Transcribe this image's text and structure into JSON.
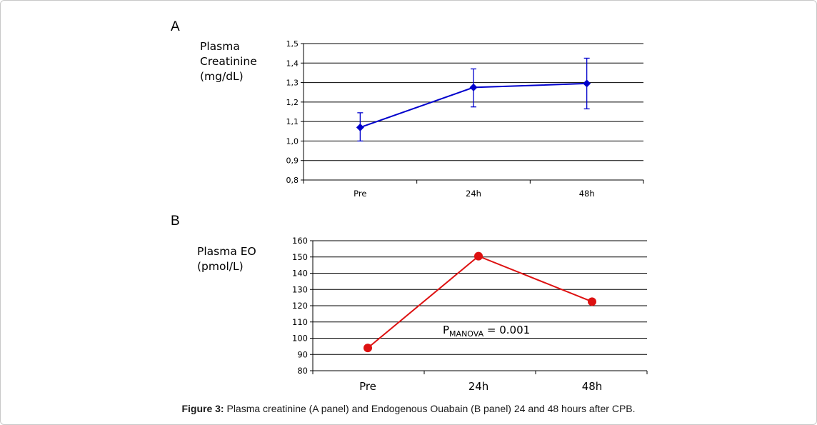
{
  "caption": {
    "label": "Figure 3:",
    "text": "Plasma creatinine (A panel) and Endogenous Ouabain (B panel) 24 and 48 hours after CPB."
  },
  "chart_data": [
    {
      "panel": "A",
      "type": "line",
      "ylabel_lines": [
        "Plasma",
        "Creatinine",
        "(mg/dL)"
      ],
      "categories": [
        "Pre",
        "24h",
        "48h"
      ],
      "ylim": [
        0.8,
        1.5
      ],
      "yticks": [
        0.8,
        0.9,
        1.0,
        1.1,
        1.2,
        1.3,
        1.4,
        1.5
      ],
      "ytick_labels": [
        "0,8",
        "0,9",
        "1,0",
        "1,1",
        "1,2",
        "1,3",
        "1,4",
        "1,5"
      ],
      "grid": true,
      "marker": "diamond",
      "color": "#0000cc",
      "series": [
        {
          "values": [
            1.07,
            1.275,
            1.295
          ],
          "err_low": [
            1.0,
            1.175,
            1.165
          ],
          "err_high": [
            1.145,
            1.37,
            1.425
          ]
        }
      ]
    },
    {
      "panel": "B",
      "type": "line",
      "ylabel_lines": [
        "Plasma EO",
        "(pmol/L)"
      ],
      "categories": [
        "Pre",
        "24h",
        "48h"
      ],
      "ylim": [
        80,
        160
      ],
      "yticks": [
        80,
        90,
        100,
        110,
        120,
        130,
        140,
        150,
        160
      ],
      "ytick_labels": [
        "80",
        "90",
        "100",
        "110",
        "120",
        "130",
        "140",
        "150",
        "160"
      ],
      "grid": true,
      "marker": "circle",
      "color": "#dd1111",
      "series": [
        {
          "values": [
            94,
            150.5,
            122.5
          ]
        }
      ],
      "annotation": {
        "main": "P",
        "sub": "MANOVA",
        "rest": " = 0.001"
      }
    }
  ]
}
